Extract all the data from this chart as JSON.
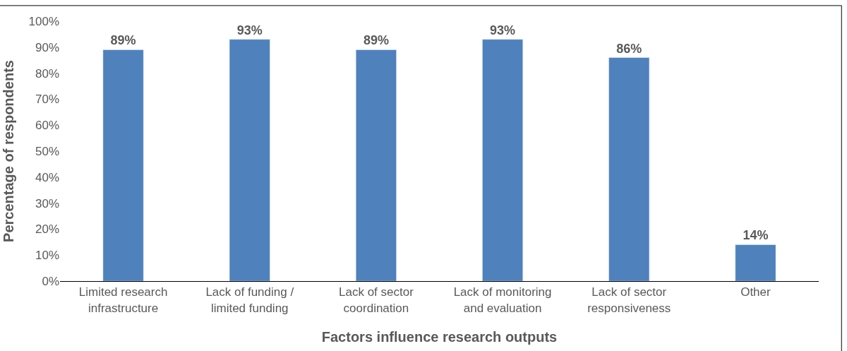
{
  "chart_data": {
    "type": "bar",
    "xlabel": "Factors influence research outputs",
    "ylabel": "Percentage of respondents",
    "categories": [
      "Limited research infrastructure",
      "Lack of funding / limited funding",
      "Lack of sector coordination",
      "Lack of monitoring and evaluation",
      "Lack of sector responsiveness",
      "Other"
    ],
    "values": [
      89,
      93,
      89,
      93,
      86,
      14
    ],
    "value_labels": [
      "89%",
      "93%",
      "89%",
      "93%",
      "86%",
      "14%"
    ],
    "color": "#4f81bd",
    "ylim": [
      0,
      100
    ],
    "yticks": [
      {
        "value": 0,
        "label": "0%"
      },
      {
        "value": 10,
        "label": "10%"
      },
      {
        "value": 20,
        "label": "20%"
      },
      {
        "value": 30,
        "label": "30%"
      },
      {
        "value": 40,
        "label": "40%"
      },
      {
        "value": 50,
        "label": "50%"
      },
      {
        "value": 60,
        "label": "60%"
      },
      {
        "value": 70,
        "label": "70%"
      },
      {
        "value": 80,
        "label": "80%"
      },
      {
        "value": 90,
        "label": "90%"
      },
      {
        "value": 100,
        "label": "100%"
      }
    ],
    "legend": false
  }
}
